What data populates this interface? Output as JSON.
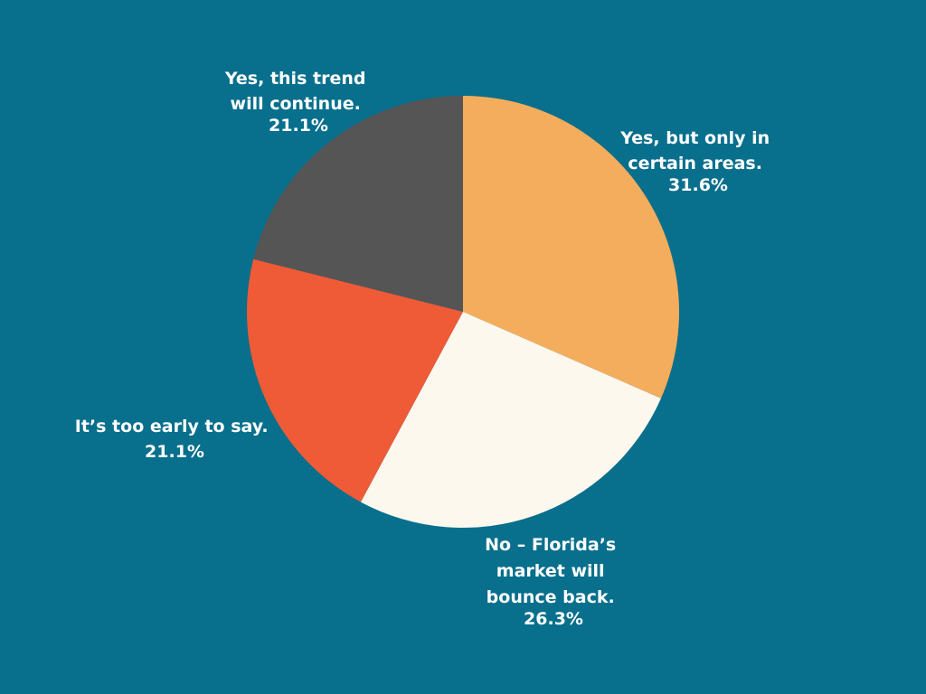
{
  "colors": {
    "background": "#086f8c"
  },
  "chart_data": {
    "type": "pie",
    "title": "",
    "start": "12 o'clock",
    "direction": "clockwise",
    "legend": "none",
    "slices": [
      {
        "label_lines": [
          "Yes, but only in",
          "certain areas."
        ],
        "percent_text": "31.6%",
        "value": 31.6,
        "color": "#f4ad5c"
      },
      {
        "label_lines": [
          "No – Florida’s",
          "market will",
          "bounce back."
        ],
        "percent_text": "26.3%",
        "value": 26.3,
        "color": "#fcf8ee"
      },
      {
        "label_lines": [
          "It’s too early to say."
        ],
        "percent_text": "21.1%",
        "value": 21.1,
        "color": "#ef5a37"
      },
      {
        "label_lines": [
          "Yes, this trend",
          "will continue."
        ],
        "percent_text": "21.1%",
        "value": 21.1,
        "color": "#555555"
      }
    ]
  }
}
